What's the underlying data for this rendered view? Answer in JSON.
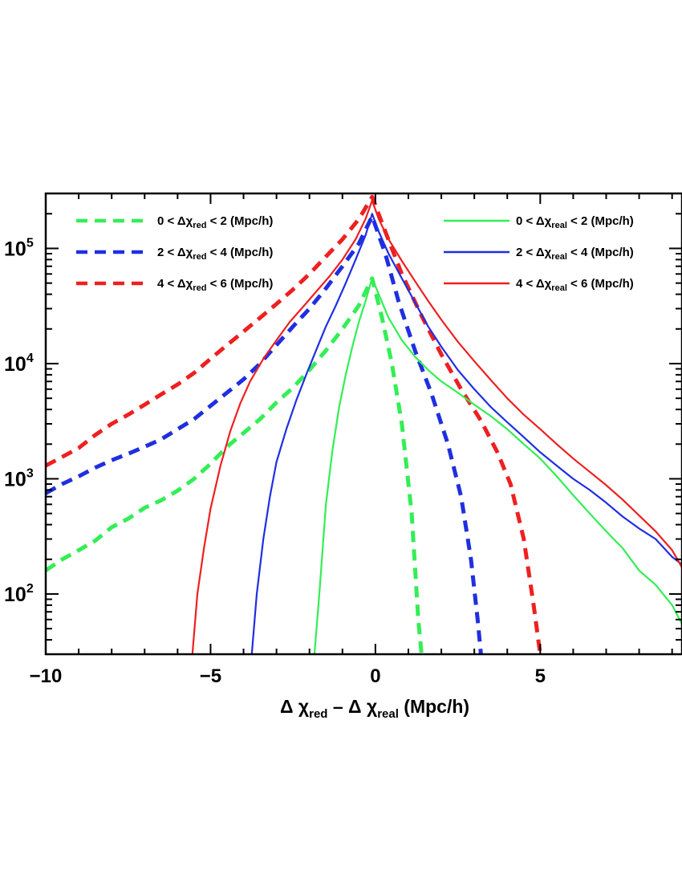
{
  "chart_data": {
    "type": "line",
    "title": "",
    "xlabel": {
      "parts": [
        {
          "text": "Δ χ",
          "sub": false
        },
        {
          "text": "red",
          "sub": true
        },
        {
          "text": " – Δ χ",
          "sub": false
        },
        {
          "text": "real",
          "sub": true
        },
        {
          "text": "  (Mpc/h)",
          "sub": false
        }
      ]
    },
    "ylabel": "",
    "xlim": [
      -10,
      9.3
    ],
    "ylim": [
      30,
      300000
    ],
    "yscale": "log",
    "grid": false,
    "legend_placement": "top (two columns)",
    "x_ticks": [
      {
        "value": -10,
        "label": "−10"
      },
      {
        "value": -5,
        "label": "−5"
      },
      {
        "value": 0,
        "label": "0"
      },
      {
        "value": 5,
        "label": "5"
      }
    ],
    "y_ticks": [
      {
        "value": 100,
        "base": "10",
        "exp": "2"
      },
      {
        "value": 1000,
        "base": "10",
        "exp": "3"
      },
      {
        "value": 10000,
        "base": "10",
        "exp": "4"
      },
      {
        "value": 100000,
        "base": "10",
        "exp": "5"
      }
    ],
    "series": [
      {
        "name": "0 < Δχred < 2 (Mpc/h)",
        "label_parts": [
          "0 < Δχ",
          "red",
          " < 2 (Mpc/h)"
        ],
        "color": "#33ee55",
        "style": "dashed",
        "x": [
          -10,
          -9.5,
          -9,
          -8.5,
          -8,
          -7.5,
          -7,
          -6.5,
          -6,
          -5.5,
          -5,
          -4.5,
          -4,
          -3.5,
          -3,
          -2.5,
          -2,
          -1.5,
          -1,
          -0.5,
          -0.1,
          0.2,
          0.5,
          0.8,
          1.1,
          1.3,
          1.4
        ],
        "y": [
          160,
          200,
          240,
          290,
          380,
          450,
          560,
          650,
          790,
          1000,
          1350,
          1900,
          2500,
          3300,
          4600,
          6200,
          8800,
          13000,
          20000,
          32000,
          55000,
          25000,
          10000,
          3000,
          500,
          60,
          30
        ]
      },
      {
        "name": "2 < Δχred < 4 (Mpc/h)",
        "label_parts": [
          "2 < Δχ",
          "red",
          " < 4 (Mpc/h)"
        ],
        "color": "#1f2fe0",
        "style": "dashed",
        "x": [
          -10,
          -9.5,
          -9,
          -8.5,
          -8,
          -7.5,
          -7,
          -6.5,
          -6,
          -5.5,
          -5,
          -4.5,
          -4,
          -3.5,
          -3,
          -2.5,
          -2,
          -1.5,
          -1,
          -0.5,
          -0.1,
          0.3,
          0.7,
          1.2,
          1.7,
          2.2,
          2.6,
          2.9,
          3.1,
          3.2
        ],
        "y": [
          750,
          900,
          1050,
          1250,
          1450,
          1650,
          1900,
          2200,
          2700,
          3300,
          4300,
          5600,
          7300,
          10000,
          14500,
          21000,
          30000,
          45000,
          70000,
          110000,
          190000,
          90000,
          35000,
          13000,
          5500,
          2000,
          700,
          200,
          60,
          30
        ]
      },
      {
        "name": "4 < Δχred < 6 (Mpc/h)",
        "label_parts": [
          "4 < Δχ",
          "red",
          " < 6 (Mpc/h)"
        ],
        "color": "#ee2020",
        "style": "dashed",
        "x": [
          -10,
          -9.5,
          -9,
          -8.5,
          -8,
          -7.5,
          -7,
          -6.5,
          -6,
          -5.5,
          -5,
          -4.5,
          -4,
          -3.5,
          -3,
          -2.5,
          -2,
          -1.5,
          -1,
          -0.5,
          -0.1,
          0.3,
          0.8,
          1.4,
          2,
          2.6,
          3.2,
          3.7,
          4.1,
          4.5,
          4.8,
          5
        ],
        "y": [
          1300,
          1550,
          1850,
          2400,
          3000,
          3600,
          4400,
          5400,
          6600,
          8300,
          11000,
          14500,
          19000,
          25000,
          33000,
          44000,
          60000,
          85000,
          120000,
          180000,
          280000,
          140000,
          60000,
          26000,
          12000,
          6000,
          3200,
          1700,
          900,
          300,
          80,
          30
        ]
      },
      {
        "name": "0 < Δχreal < 2 (Mpc/h)",
        "label_parts": [
          "0 < Δχ",
          "real",
          " < 2 (Mpc/h)"
        ],
        "color": "#33ee55",
        "style": "solid",
        "x": [
          -1.85,
          -1.7,
          -1.5,
          -1.3,
          -1.1,
          -0.9,
          -0.7,
          -0.5,
          -0.3,
          -0.1,
          0.1,
          0.4,
          0.8,
          1.2,
          1.6,
          2,
          2.5,
          3,
          3.5,
          4,
          4.5,
          5,
          5.5,
          6,
          6.5,
          7,
          7.5,
          8,
          8.5,
          9,
          9.3
        ],
        "y": [
          30,
          100,
          600,
          1800,
          4200,
          8000,
          14000,
          23000,
          35000,
          55000,
          40000,
          25000,
          16000,
          11500,
          8800,
          7000,
          5600,
          4400,
          3500,
          2700,
          2000,
          1500,
          1050,
          720,
          500,
          350,
          250,
          160,
          120,
          80,
          55
        ]
      },
      {
        "name": "2 < Δχreal < 4 (Mpc/h)",
        "label_parts": [
          "2 < Δχ",
          "real",
          " < 4 (Mpc/h)"
        ],
        "color": "#1f2fe0",
        "style": "solid",
        "x": [
          -3.75,
          -3.6,
          -3.4,
          -3.2,
          -3,
          -2.7,
          -2.4,
          -2.1,
          -1.8,
          -1.5,
          -1.2,
          -0.9,
          -0.6,
          -0.3,
          -0.1,
          0.1,
          0.4,
          0.8,
          1.2,
          1.6,
          2,
          2.5,
          3,
          3.5,
          4,
          4.5,
          5,
          5.5,
          6,
          6.5,
          7,
          7.5,
          8,
          8.5,
          9,
          9.3
        ],
        "y": [
          30,
          100,
          300,
          700,
          1400,
          2700,
          4800,
          8000,
          13000,
          21000,
          32000,
          50000,
          80000,
          130000,
          200000,
          140000,
          90000,
          55000,
          34000,
          21000,
          14000,
          8800,
          6000,
          4200,
          3100,
          2300,
          1700,
          1300,
          1000,
          800,
          620,
          470,
          370,
          300,
          210,
          180
        ]
      },
      {
        "name": "4 < Δχreal < 6 (Mpc/h)",
        "label_parts": [
          "4 < Δχ",
          "real",
          " < 6 (Mpc/h)"
        ],
        "color": "#ee2020",
        "style": "solid",
        "x": [
          -5.55,
          -5.4,
          -5.2,
          -5,
          -4.7,
          -4.4,
          -4.1,
          -3.8,
          -3.4,
          -3,
          -2.6,
          -2.2,
          -1.8,
          -1.4,
          -1,
          -0.6,
          -0.3,
          -0.1,
          0.1,
          0.4,
          0.8,
          1.2,
          1.6,
          2,
          2.5,
          3,
          3.5,
          4,
          4.5,
          5,
          5.5,
          6,
          6.5,
          7,
          7.5,
          8,
          8.5,
          9,
          9.3
        ],
        "y": [
          30,
          100,
          250,
          550,
          1300,
          2600,
          4500,
          7000,
          11000,
          16000,
          23000,
          31000,
          42000,
          57000,
          80000,
          120000,
          180000,
          260000,
          180000,
          120000,
          78000,
          52000,
          35000,
          24000,
          15500,
          10500,
          7200,
          5000,
          3600,
          2700,
          2000,
          1500,
          1150,
          880,
          660,
          480,
          350,
          240,
          170
        ]
      }
    ]
  }
}
